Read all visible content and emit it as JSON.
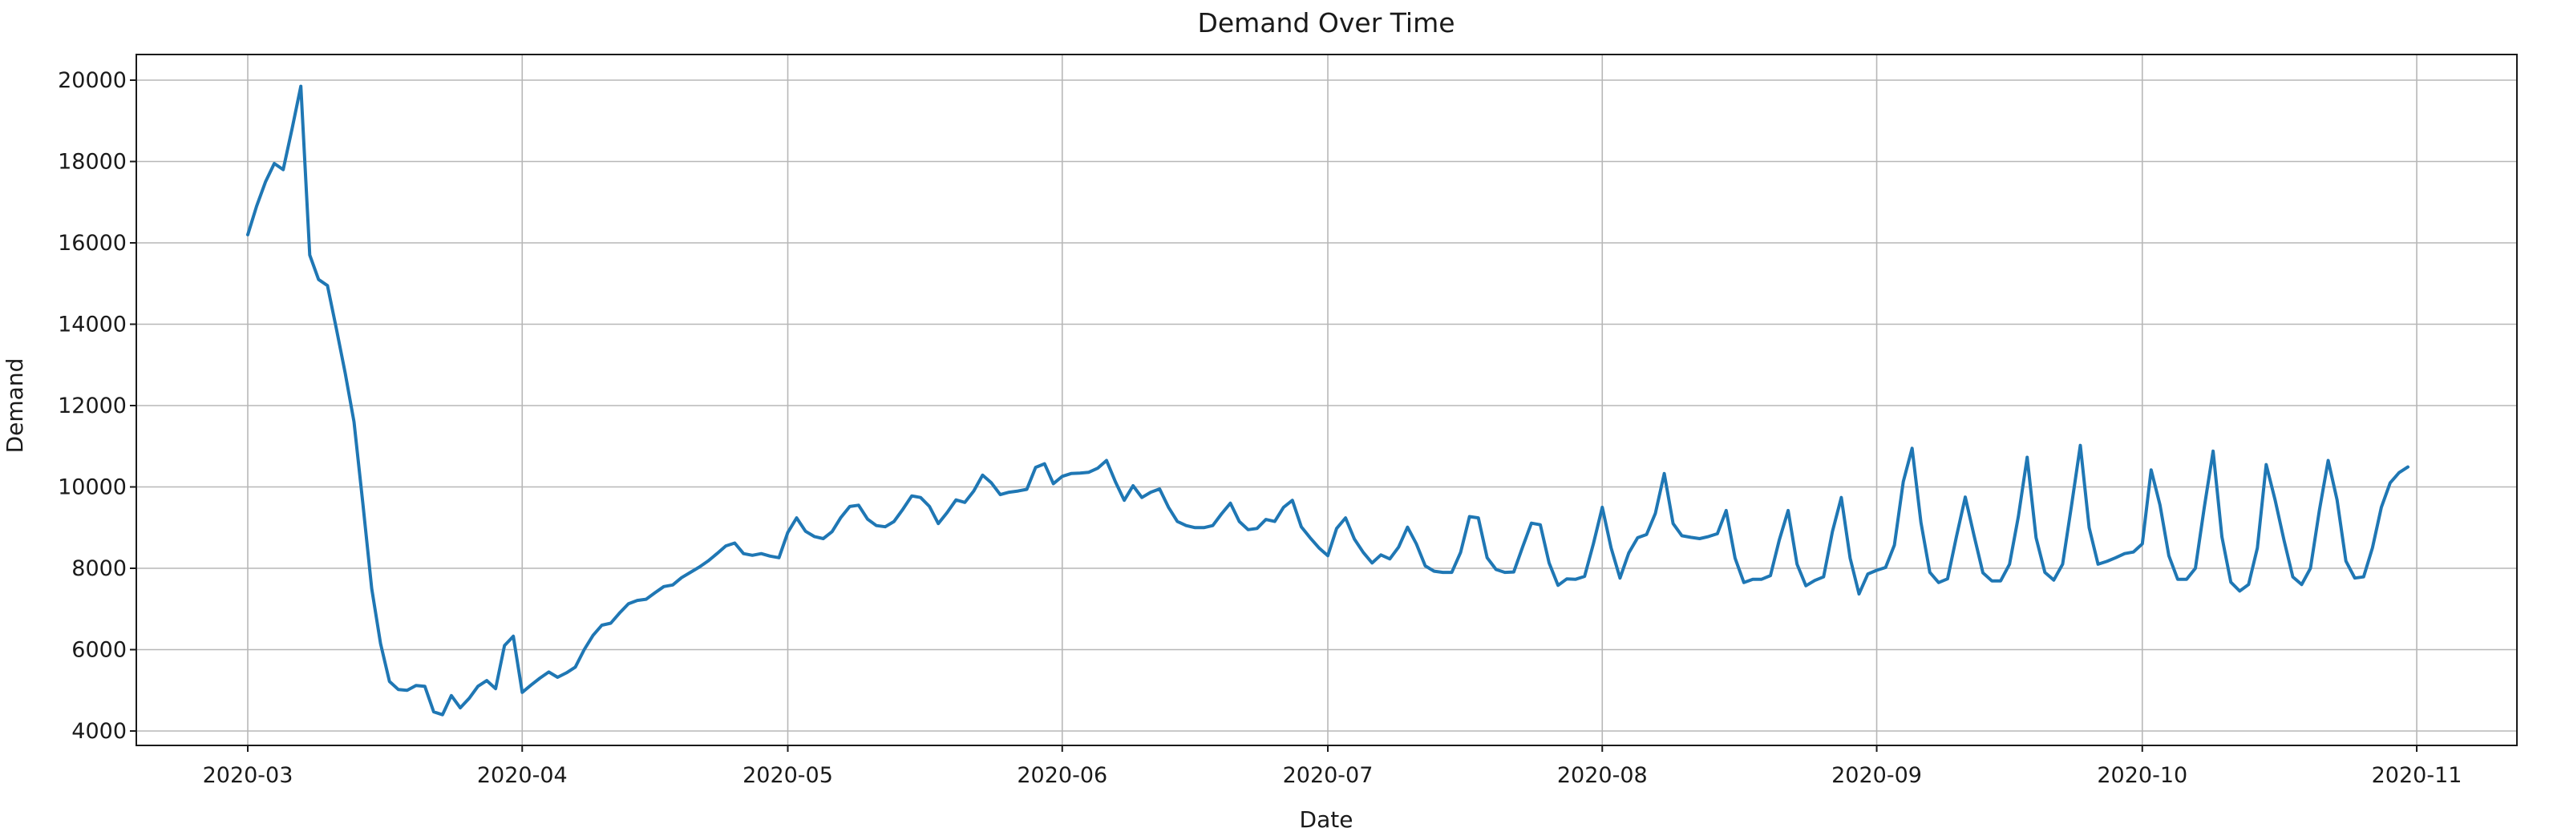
{
  "figure": {
    "title": "Demand Over Time",
    "xlabel": "Date",
    "ylabel": "Demand"
  },
  "colors": {
    "line": "#1f77b4",
    "grid": "#b7b7b7",
    "spine": "#1a1a1a",
    "tick": "#1a1a1a",
    "text": "#1a1a1a",
    "background": "#ffffff"
  },
  "chart_data": {
    "type": "line",
    "title": "Demand Over Time",
    "xlabel": "Date",
    "ylabel": "Demand",
    "grid": true,
    "legend": null,
    "start_date": "2020-03-01",
    "end_date": "2020-10-31",
    "frequency": "daily",
    "xticks": [
      "2020-03",
      "2020-04",
      "2020-05",
      "2020-06",
      "2020-07",
      "2020-08",
      "2020-09",
      "2020-10",
      "2020-11"
    ],
    "yticks": [
      4000,
      6000,
      8000,
      10000,
      12000,
      14000,
      16000,
      18000,
      20000
    ],
    "ylim": [
      3630,
      20600
    ],
    "series": [
      {
        "name": "Demand",
        "color": "#1f77b4",
        "values": [
          16200,
          16900,
          17500,
          17950,
          17800,
          18800,
          19850,
          15700,
          15100,
          14950,
          13900,
          12800,
          11600,
          9600,
          7500,
          6150,
          5220,
          5020,
          5000,
          5120,
          5100,
          4470,
          4400,
          4870,
          4570,
          4800,
          5100,
          5240,
          5040,
          6100,
          6330,
          4950,
          5130,
          5300,
          5450,
          5320,
          5430,
          5570,
          6000,
          6350,
          6600,
          6650,
          6900,
          7130,
          7210,
          7240,
          7400,
          7550,
          7590,
          7770,
          7900,
          8030,
          8180,
          8360,
          8550,
          8620,
          8360,
          8320,
          8360,
          8300,
          8260,
          8880,
          9240,
          8910,
          8780,
          8730,
          8900,
          9250,
          9520,
          9550,
          9210,
          9050,
          9020,
          9150,
          9450,
          9780,
          9740,
          9520,
          9100,
          9370,
          9680,
          9620,
          9900,
          10290,
          10100,
          9810,
          9870,
          9900,
          9940,
          10480,
          10570,
          10080,
          10260,
          10330,
          10340,
          10360,
          10460,
          10650,
          10130,
          9670,
          10030,
          9740,
          9870,
          9950,
          9500,
          9150,
          9050,
          9000,
          9000,
          9050,
          9340,
          9600,
          9150,
          8950,
          8980,
          9200,
          9150,
          9500,
          9670,
          9020,
          8750,
          8500,
          8310,
          8980,
          9240,
          8720,
          8390,
          8130,
          8330,
          8230,
          8520,
          9010,
          8600,
          8060,
          7930,
          7900,
          7900,
          8390,
          9270,
          9240,
          8260,
          7970,
          7900,
          7910,
          8520,
          9110,
          9070,
          8130,
          7580,
          7740,
          7730,
          7800,
          8600,
          9500,
          8500,
          7760,
          8380,
          8750,
          8830,
          9350,
          10330,
          9100,
          8800,
          8760,
          8730,
          8780,
          8850,
          9420,
          8250,
          7650,
          7730,
          7730,
          7820,
          8700,
          9420,
          8100,
          7570,
          7700,
          7790,
          8900,
          9740,
          8250,
          7370,
          7860,
          7950,
          8020,
          8570,
          10130,
          10950,
          9130,
          7900,
          7650,
          7740,
          8770,
          9750,
          8800,
          7890,
          7690,
          7690,
          8100,
          9270,
          10730,
          8750,
          7900,
          7710,
          8100,
          9530,
          11020,
          9000,
          8100,
          8170,
          8260,
          8360,
          8400,
          8600,
          10420,
          9550,
          8310,
          7730,
          7730,
          8000,
          9500,
          10880,
          8770,
          7660,
          7440,
          7600,
          8500,
          10550,
          9680,
          8700,
          7790,
          7600,
          8000,
          9420,
          10650,
          9680,
          8180,
          7760,
          7790,
          8500,
          9500,
          10100,
          10350,
          10490
        ]
      }
    ]
  }
}
